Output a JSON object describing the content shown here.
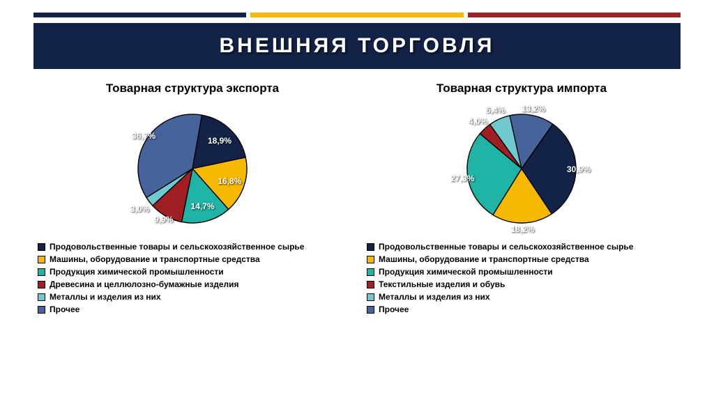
{
  "header": {
    "title": "ВНЕШНЯЯ ТОРГОВЛЯ",
    "band_bg": "#132347",
    "stripes": [
      "#132347",
      "#f6b800",
      "#a01f23"
    ]
  },
  "charts": [
    {
      "title": "Товарная структура экспорта",
      "start_angle": -80,
      "slices": [
        {
          "value": 18.9,
          "label": "18,9%",
          "color": "#132347",
          "label_r": 0.72
        },
        {
          "value": 16.8,
          "label": "16,8%",
          "color": "#f6b800",
          "label_r": 0.72
        },
        {
          "value": 14.7,
          "label": "14,7%",
          "color": "#1fb4a5",
          "label_r": 0.72
        },
        {
          "value": 9.9,
          "label": "9,9%",
          "color": "#a01f23",
          "label_r": 1.08
        },
        {
          "value": 3.0,
          "label": "3,0%",
          "color": "#6fc9cf",
          "label_r": 1.22
        },
        {
          "value": 36.7,
          "label": "36,7%",
          "color": "#47639c",
          "label_r": 1.08
        }
      ],
      "legend": [
        {
          "color": "#132347",
          "text": "Продовольственные товары и сельскохозяйственное сырье"
        },
        {
          "color": "#f6b800",
          "text": "Машины, оборудование и транспортные средства"
        },
        {
          "color": "#1fb4a5",
          "text": "Продукция химической промышленности"
        },
        {
          "color": "#a01f23",
          "text": "Древесина и целлюлозно-бумажные изделия"
        },
        {
          "color": "#6fc9cf",
          "text": "Металлы и изделия из них"
        },
        {
          "color": "#47639c",
          "text": "Прочее"
        }
      ]
    },
    {
      "title": "Товарная структура импорта",
      "start_angle": -55,
      "slices": [
        {
          "value": 30.9,
          "label": "30,9%",
          "color": "#132347",
          "label_r": 1.05
        },
        {
          "value": 18.2,
          "label": "18,2%",
          "color": "#f6b800",
          "label_r": 1.12
        },
        {
          "value": 27.3,
          "label": "27,3%",
          "color": "#1fb4a5",
          "label_r": 1.1
        },
        {
          "value": 4.0,
          "label": "4,0%",
          "color": "#a01f23",
          "label_r": 1.18
        },
        {
          "value": 6.4,
          "label": "6,4%",
          "color": "#6fc9cf",
          "label_r": 1.18
        },
        {
          "value": 13.2,
          "label": "13,2%",
          "color": "#47639c",
          "label_r": 1.12
        }
      ],
      "legend": [
        {
          "color": "#132347",
          "text": "Продовольственные товары и сельскохозяйственное сырье"
        },
        {
          "color": "#f6b800",
          "text": "Машины, оборудование и транспортные средства"
        },
        {
          "color": "#1fb4a5",
          "text": "Продукция химической промышленности"
        },
        {
          "color": "#a01f23",
          "text": "Текстильные изделия и обувь"
        },
        {
          "color": "#6fc9cf",
          "text": "Металлы и изделия из них"
        },
        {
          "color": "#47639c",
          "text": "Прочее"
        }
      ]
    }
  ],
  "pie_style": {
    "radius": 78,
    "stroke": "#000000",
    "stroke_width": 1.4,
    "svg_size": 190
  }
}
